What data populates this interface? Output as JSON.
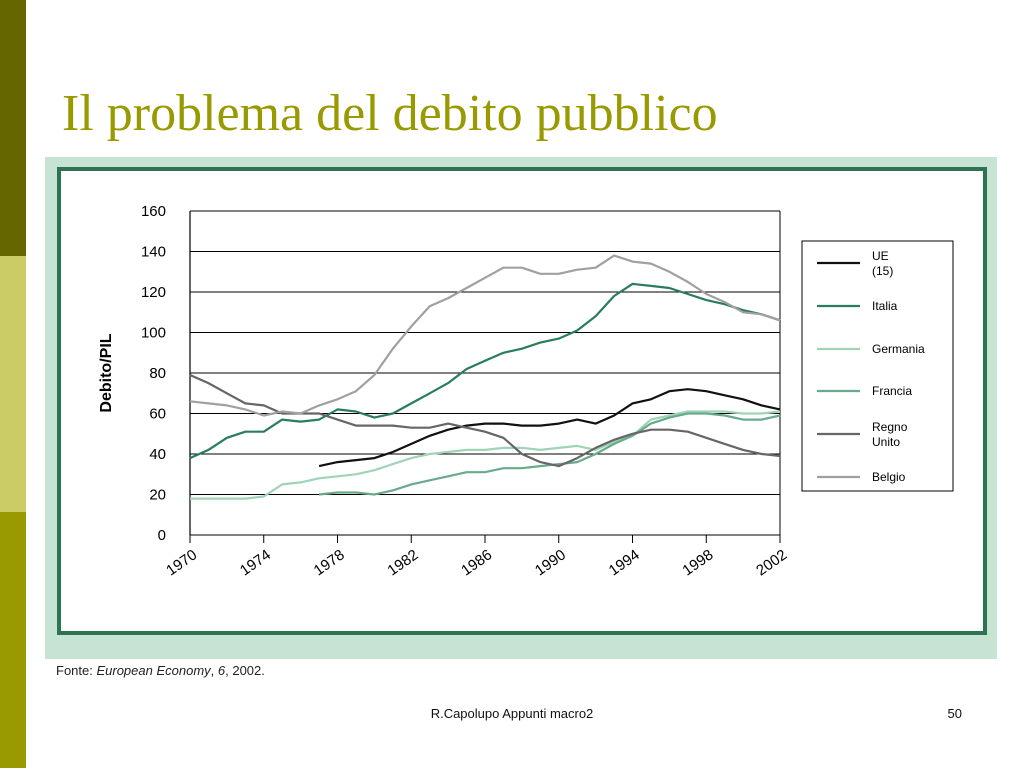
{
  "slide": {
    "title": "Il problema del debito pubblico",
    "footer": "R.Capolupo Appunti macro2",
    "page_number": "50"
  },
  "source_note": {
    "prefix": "Fonte: ",
    "publication": "European Economy",
    "separator": ", ",
    "issue": "6",
    "suffix": ", 2002."
  },
  "colors": {
    "bar_dark": "#666600",
    "bar_light": "#cccc66",
    "bar_olive": "#999900",
    "title": "#999900",
    "frame_border": "#2f7452",
    "frame_fill": "#c7e3d3"
  },
  "chart_data": {
    "type": "line",
    "title": "",
    "xlabel": "",
    "ylabel": "Debito/PIL",
    "xlim": [
      1970,
      2002
    ],
    "ylim": [
      0,
      160
    ],
    "x_ticks": [
      "1970",
      "1974",
      "1978",
      "1982",
      "1986",
      "1990",
      "1994",
      "1998",
      "2002"
    ],
    "y_ticks": [
      "0",
      "20",
      "40",
      "60",
      "80",
      "100",
      "120",
      "140",
      "160"
    ],
    "grid": "horizontal",
    "legend_position": "right",
    "series": [
      {
        "name": "UE (15)",
        "color": "#111111",
        "x": [
          1977,
          1978,
          1979,
          1980,
          1981,
          1982,
          1983,
          1984,
          1985,
          1986,
          1987,
          1988,
          1989,
          1990,
          1991,
          1992,
          1993,
          1994,
          1995,
          1996,
          1997,
          1998,
          1999,
          2000,
          2001,
          2002
        ],
        "y": [
          34,
          36,
          37,
          38,
          41,
          45,
          49,
          52,
          54,
          55,
          55,
          54,
          54,
          55,
          57,
          55,
          59,
          65,
          67,
          71,
          72,
          71,
          69,
          67,
          64,
          62
        ]
      },
      {
        "name": "Italia",
        "color": "#2a7d5a",
        "x": [
          1970,
          1971,
          1972,
          1973,
          1974,
          1975,
          1976,
          1977,
          1978,
          1979,
          1980,
          1981,
          1982,
          1983,
          1984,
          1985,
          1986,
          1987,
          1988,
          1989,
          1990,
          1991,
          1992,
          1993,
          1994,
          1995,
          1996,
          1997,
          1998,
          1999,
          2000,
          2001,
          2002
        ],
        "y": [
          38,
          42,
          48,
          51,
          51,
          57,
          56,
          57,
          62,
          61,
          58,
          60,
          65,
          70,
          75,
          82,
          86,
          90,
          92,
          95,
          97,
          101,
          108,
          118,
          124,
          123,
          122,
          119,
          116,
          114,
          111,
          109,
          106
        ]
      },
      {
        "name": "Germania",
        "color": "#9fd4b6",
        "x": [
          1970,
          1971,
          1972,
          1973,
          1974,
          1975,
          1976,
          1977,
          1978,
          1979,
          1980,
          1981,
          1982,
          1983,
          1984,
          1985,
          1986,
          1987,
          1988,
          1989,
          1990,
          1991,
          1992,
          1993,
          1994,
          1995,
          1996,
          1997,
          1998,
          1999,
          2000,
          2001,
          2002
        ],
        "y": [
          18,
          18,
          18,
          18,
          19,
          25,
          26,
          28,
          29,
          30,
          32,
          35,
          38,
          40,
          41,
          42,
          42,
          43,
          43,
          42,
          43,
          44,
          42,
          46,
          49,
          57,
          59,
          61,
          61,
          61,
          60,
          60,
          61
        ]
      },
      {
        "name": "Francia",
        "color": "#6aaa8c",
        "x": [
          1977,
          1978,
          1979,
          1980,
          1981,
          1982,
          1983,
          1984,
          1985,
          1986,
          1987,
          1988,
          1989,
          1990,
          1991,
          1992,
          1993,
          1994,
          1995,
          1996,
          1997,
          1998,
          1999,
          2000,
          2001,
          2002
        ],
        "y": [
          20,
          21,
          21,
          20,
          22,
          25,
          27,
          29,
          31,
          31,
          33,
          33,
          34,
          35,
          36,
          40,
          45,
          49,
          55,
          58,
          60,
          60,
          59,
          57,
          57,
          59
        ]
      },
      {
        "name": "Regno Unito",
        "color": "#666666",
        "x": [
          1970,
          1971,
          1972,
          1973,
          1974,
          1975,
          1976,
          1977,
          1978,
          1979,
          1980,
          1981,
          1982,
          1983,
          1984,
          1985,
          1986,
          1987,
          1988,
          1989,
          1990,
          1991,
          1992,
          1993,
          1994,
          1995,
          1996,
          1997,
          1998,
          1999,
          2000,
          2001,
          2002
        ],
        "y": [
          79,
          75,
          70,
          65,
          64,
          60,
          60,
          60,
          57,
          54,
          54,
          54,
          53,
          53,
          55,
          53,
          51,
          48,
          40,
          36,
          34,
          38,
          43,
          47,
          50,
          52,
          52,
          51,
          48,
          45,
          42,
          40,
          39
        ]
      },
      {
        "name": "Belgio",
        "color": "#a0a0a0",
        "x": [
          1970,
          1971,
          1972,
          1973,
          1974,
          1975,
          1976,
          1977,
          1978,
          1979,
          1980,
          1981,
          1982,
          1983,
          1984,
          1985,
          1986,
          1987,
          1988,
          1989,
          1990,
          1991,
          1992,
          1993,
          1994,
          1995,
          1996,
          1997,
          1998,
          1999,
          2000,
          2001,
          2002
        ],
        "y": [
          66,
          65,
          64,
          62,
          59,
          61,
          60,
          64,
          67,
          71,
          79,
          92,
          103,
          113,
          117,
          122,
          127,
          132,
          132,
          129,
          129,
          131,
          132,
          138,
          135,
          134,
          130,
          125,
          119,
          115,
          110,
          109,
          106
        ]
      }
    ]
  }
}
